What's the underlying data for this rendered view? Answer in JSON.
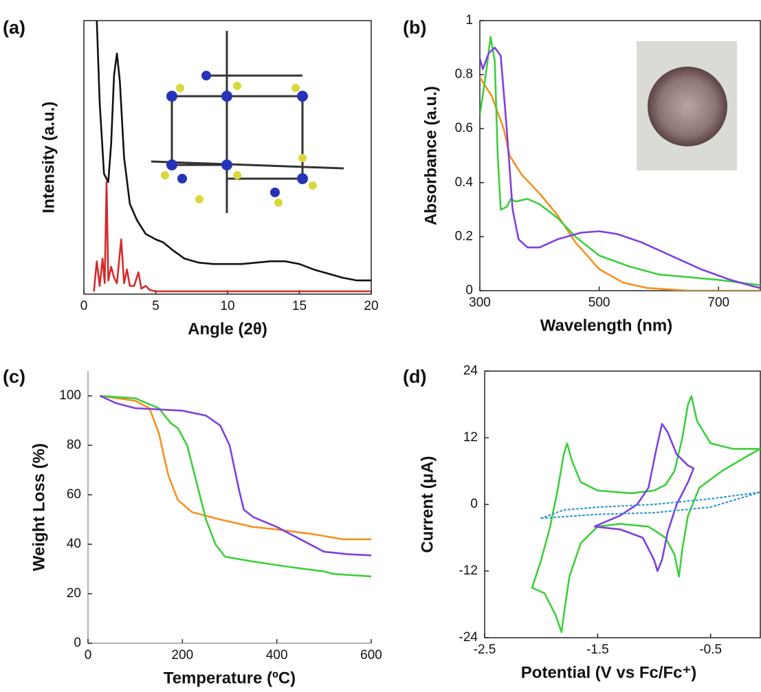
{
  "chart_data": [
    {
      "type": "line",
      "label": "(a)",
      "x_label": "Angle (2θ)",
      "y_label": "Intensity (a.u.)",
      "xlim": [
        0,
        20
      ],
      "ylim": [
        0,
        100
      ],
      "xticks": [
        0,
        5,
        10,
        15,
        20
      ],
      "frame": true,
      "series": [
        {
          "color": "#111111",
          "x": [
            0.9,
            1.1,
            1.4,
            1.7,
            1.9,
            2.1,
            2.3,
            2.5,
            2.8,
            3.2,
            3.7,
            4.3,
            5,
            5.5,
            6.2,
            7,
            8,
            9,
            10,
            11,
            12,
            13,
            14,
            15,
            16,
            17,
            18,
            19,
            20
          ],
          "values": [
            100,
            70,
            44,
            41,
            55,
            80,
            88,
            78,
            50,
            33,
            27,
            22,
            20,
            19,
            16,
            13,
            11.5,
            11,
            11,
            11,
            11.5,
            12,
            12,
            11,
            9,
            7.5,
            6,
            5,
            5
          ]
        },
        {
          "color": "#d42a2a",
          "x": [
            0.7,
            0.9,
            1.1,
            1.3,
            1.45,
            1.58,
            1.7,
            1.9,
            2.1,
            2.3,
            2.6,
            2.8,
            3.0,
            3.2,
            3.5,
            3.8,
            4.0,
            4.3,
            4.6,
            5,
            6,
            20
          ],
          "values": [
            1,
            12,
            3,
            13,
            4,
            41,
            5,
            10,
            6,
            4,
            20,
            4,
            9,
            3,
            3,
            8,
            2,
            3,
            1.5,
            1,
            1,
            1
          ]
        }
      ]
    },
    {
      "type": "line",
      "label": "(b)",
      "x_label": "Wavelength (nm)",
      "y_label": "Absorbance (a.u.)",
      "xlim": [
        300,
        770
      ],
      "ylim": [
        0,
        1
      ],
      "xticks": [
        300,
        500,
        700
      ],
      "yticks": [
        0,
        0.2,
        0.4,
        0.6,
        0.8,
        1
      ],
      "frame": true,
      "series": [
        {
          "color": "#f7901e",
          "x": [
            300,
            320,
            340,
            350,
            370,
            400,
            430,
            460,
            500,
            540,
            580,
            650,
            770
          ],
          "values": [
            0.79,
            0.72,
            0.6,
            0.5,
            0.43,
            0.36,
            0.28,
            0.18,
            0.08,
            0.03,
            0.01,
            0,
            0
          ]
        },
        {
          "color": "#3ccf3c",
          "x": [
            300,
            310,
            318,
            325,
            330,
            335,
            345,
            352,
            360,
            380,
            400,
            430,
            460,
            500,
            550,
            600,
            700,
            770
          ],
          "values": [
            0.65,
            0.8,
            0.94,
            0.85,
            0.5,
            0.3,
            0.31,
            0.34,
            0.33,
            0.34,
            0.32,
            0.27,
            0.2,
            0.13,
            0.09,
            0.06,
            0.04,
            0.02
          ]
        },
        {
          "color": "#7d3fe0",
          "x": [
            300,
            305,
            315,
            325,
            335,
            345,
            355,
            365,
            380,
            400,
            430,
            470,
            500,
            530,
            570,
            620,
            670,
            720,
            760,
            770
          ],
          "values": [
            0.86,
            0.82,
            0.88,
            0.9,
            0.87,
            0.6,
            0.3,
            0.19,
            0.16,
            0.16,
            0.19,
            0.215,
            0.22,
            0.21,
            0.18,
            0.13,
            0.08,
            0.04,
            0.015,
            0.01
          ]
        }
      ]
    },
    {
      "type": "line",
      "label": "(c)",
      "x_label": "Temperature (ºC)",
      "y_label": "Weight Loss (%)",
      "xlim": [
        0,
        600
      ],
      "ylim": [
        0,
        110
      ],
      "xticks": [
        0,
        200,
        400,
        600
      ],
      "yticks": [
        0,
        20,
        40,
        60,
        80,
        100
      ],
      "frame": false,
      "series": [
        {
          "color": "#f7901e",
          "x": [
            25,
            100,
            130,
            150,
            170,
            190,
            220,
            280,
            350,
            400,
            480,
            540,
            600
          ],
          "values": [
            100,
            98,
            95,
            85,
            68,
            58,
            53,
            50,
            47,
            46,
            44,
            42,
            42
          ]
        },
        {
          "color": "#3ccf3c",
          "x": [
            25,
            100,
            150,
            175,
            190,
            210,
            230,
            250,
            270,
            290,
            350,
            420,
            500,
            520,
            600
          ],
          "values": [
            100,
            99,
            95,
            89,
            87,
            80,
            65,
            50,
            40,
            35,
            33,
            31,
            29,
            28,
            27
          ]
        },
        {
          "color": "#7d3fe0",
          "x": [
            25,
            60,
            100,
            200,
            250,
            280,
            300,
            320,
            330,
            350,
            400,
            450,
            500,
            550,
            600
          ],
          "values": [
            100,
            97,
            95,
            94,
            92,
            88,
            80,
            62,
            54,
            51,
            47,
            42,
            37,
            36,
            35.5
          ]
        }
      ]
    },
    {
      "type": "line",
      "label": "(d)",
      "x_label": "Potential (V vs Fc/Fc⁺)",
      "y_label": "Current (μA)",
      "xlim": [
        -2.5,
        -0.06
      ],
      "ylim": [
        -24,
        24
      ],
      "xticks": [
        -2.5,
        -1.5,
        -0.5
      ],
      "yticks": [
        -24,
        -12,
        0,
        12,
        24
      ],
      "frame": true,
      "series": [
        {
          "color": "#3ccf3c",
          "x": [
            -0.06,
            -0.15,
            -0.4,
            -0.6,
            -0.7,
            -0.75,
            -0.78,
            -0.82,
            -0.9,
            -1.05,
            -1.3,
            -1.5,
            -1.65,
            -1.75,
            -1.8,
            -1.82,
            -1.87,
            -1.97,
            -2.08,
            -2.0,
            -1.92,
            -1.85,
            -1.8,
            -1.77,
            -1.73,
            -1.65,
            -1.5,
            -1.2,
            -1.0,
            -0.9,
            -0.82,
            -0.75,
            -0.7,
            -0.67,
            -0.62,
            -0.5,
            -0.3,
            -0.06
          ],
          "values": [
            10,
            9,
            6,
            3,
            -2,
            -8,
            -13,
            -9,
            -6,
            -4,
            -3.5,
            -4,
            -7,
            -13,
            -20,
            -23,
            -20,
            -16,
            -15,
            -10,
            -4,
            3,
            9,
            11,
            8,
            4,
            2.5,
            2,
            2.5,
            3.5,
            6,
            12,
            18,
            19.5,
            15,
            11,
            10,
            10
          ]
        },
        {
          "color": "#7d3fe0",
          "x": [
            -1.53,
            -1.3,
            -1.15,
            -1.05,
            -0.98,
            -0.93,
            -0.88,
            -0.8,
            -0.7,
            -0.65,
            -0.7,
            -0.8,
            -0.88,
            -0.93,
            -0.97,
            -1.0,
            -1.1,
            -1.3,
            -1.53
          ],
          "values": [
            -4,
            -2,
            0,
            3,
            10,
            14.5,
            13,
            9,
            7,
            6.5,
            4,
            0,
            -5,
            -10,
            -12,
            -10,
            -6,
            -4.5,
            -4
          ]
        },
        {
          "color": "#3399cc",
          "line_style": "dotted",
          "x": [
            -2.0,
            -1.8,
            -1.5,
            -1.0,
            -0.5,
            -0.06,
            -0.5,
            -1.0,
            -1.5,
            -2.0
          ],
          "values": [
            -2.5,
            -1,
            -0.5,
            0,
            1,
            2.2,
            -0.5,
            -1.5,
            -1.8,
            -2.5
          ]
        }
      ]
    }
  ]
}
